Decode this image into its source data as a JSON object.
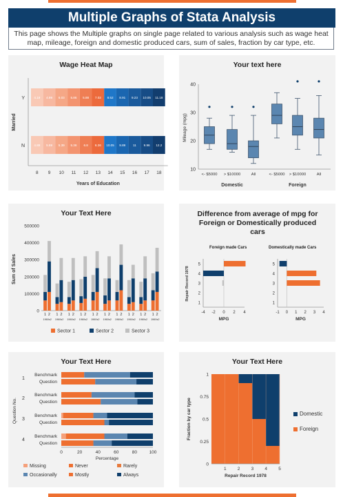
{
  "page": {
    "title": "Multiple Graphs of Stata Analysis",
    "description": "This page shows the Multiple  graphs on single page related to various analysis such as wage heat map, mileage, foreign and domestic produced cars, sum of sales, fraction by car type, etc."
  },
  "colors": {
    "navy": "#0f3f6c",
    "orange": "#ee6f30",
    "blue": "#1f77c8",
    "gray": "#bfbfbf",
    "steel": "#5b86b0"
  },
  "chart_data": [
    {
      "type": "heatmap",
      "title": "Wage Heat Map",
      "xlabel": "Years of Education",
      "ylabel": "Married",
      "x": [
        "8",
        "9",
        "10",
        "11",
        "12",
        "13",
        "14",
        "15",
        "16",
        "17",
        "18"
      ],
      "rows": [
        {
          "label": "Y",
          "cells": [
            "4.19",
            "4.99",
            "6.03",
            "5.86",
            "5.88",
            "7.02",
            "8.52",
            "8.91",
            "9.23",
            "10.05",
            "11.18"
          ]
        },
        {
          "label": "N",
          "cells": [
            "4.89",
            "5.59",
            "5.39",
            "5.36",
            "6.8",
            "6.26",
            "10.05",
            "9.89",
            "11",
            "9.96",
            "12.2"
          ]
        }
      ]
    },
    {
      "type": "box",
      "title": "Your text here",
      "ylabel": "Mileage (mpg)",
      "ylim": [
        10,
        40
      ],
      "yticks": [
        "10",
        "20",
        "30",
        "40"
      ],
      "categories": [
        "<- $5000",
        "> $10000",
        "All",
        "<- $5000",
        "> $10000",
        "All"
      ],
      "groups": [
        "Domestic",
        "Foreign"
      ],
      "boxes": [
        {
          "min": 17,
          "q1": 19,
          "med": 22,
          "q3": 25,
          "max": 28,
          "outlier": 32
        },
        {
          "min": 16,
          "q1": 17,
          "med": 19,
          "q3": 24,
          "max": 29,
          "outlier": 32
        },
        {
          "min": 12,
          "q1": 14,
          "med": 18,
          "q3": 20,
          "max": 29,
          "outlier": 32
        },
        {
          "min": 21,
          "q1": 26,
          "med": 29,
          "q3": 33,
          "max": 37,
          "outlier": null
        },
        {
          "min": 17,
          "q1": 22,
          "med": 25,
          "q3": 29,
          "max": 35,
          "outlier": 41
        },
        {
          "min": 15,
          "q1": 21,
          "med": 24,
          "q3": 28,
          "max": 36,
          "outlier": 41
        }
      ]
    },
    {
      "type": "bar",
      "title": "Your Text Here",
      "ylabel": "Sum of Sales",
      "ylim": [
        0,
        500000
      ],
      "yticks": [
        "0",
        "100000",
        "200000",
        "300000",
        "400000",
        "500000"
      ],
      "bar_labels": [
        "1",
        "2"
      ],
      "group_labels": [
        "1960s",
        "1960s",
        "1960s",
        "1960s",
        "1960s",
        "1960s",
        "1960s",
        "1960s",
        "1960s",
        "1960s"
      ],
      "group_label_suffix": "2",
      "series": [
        {
          "name": "Sector 1",
          "values": [
            [
              60000,
              110000
            ],
            [
              40000,
              50000
            ],
            [
              40000,
              60000
            ],
            [
              45000,
              70000
            ],
            [
              60000,
              110000
            ],
            [
              40000,
              60000
            ],
            [
              60000,
              120000
            ],
            [
              40000,
              50000
            ],
            [
              40000,
              60000
            ],
            [
              60000,
              110000
            ]
          ]
        },
        {
          "name": "Sector 2",
          "values": [
            [
              50000,
              180000
            ],
            [
              40000,
              130000
            ],
            [
              40000,
              120000
            ],
            [
              40000,
              130000
            ],
            [
              50000,
              140000
            ],
            [
              50000,
              130000
            ],
            [
              50000,
              150000
            ],
            [
              40000,
              140000
            ],
            [
              40000,
              130000
            ],
            [
              60000,
              120000
            ]
          ]
        },
        {
          "name": "Sector 3",
          "values": [
            [
              100000,
              120000
            ],
            [
              80000,
              130000
            ],
            [
              90000,
              130000
            ],
            [
              100000,
              120000
            ],
            [
              100000,
              100000
            ],
            [
              100000,
              130000
            ],
            [
              70000,
              120000
            ],
            [
              100000,
              80000
            ],
            [
              90000,
              130000
            ],
            [
              100000,
              140000
            ]
          ]
        }
      ]
    },
    {
      "type": "bar",
      "title": "Difference from average of mpg for Foreign or Domestically  produced cars",
      "ylabel": "Repair Record 1978",
      "panels": [
        {
          "name": "Foreign made Cars",
          "xlabel": "MPG",
          "xlim": [
            -4,
            4
          ],
          "xticks": [
            "-4",
            "-2",
            "0",
            "2",
            "4"
          ],
          "yticks": [
            "1",
            "2",
            "3",
            "4",
            "5"
          ],
          "bars": [
            {
              "y": 5,
              "value": 4.2,
              "color": "orange"
            },
            {
              "y": 4,
              "value": -4,
              "color": "navy"
            },
            {
              "y": 3,
              "value": -0.3,
              "color": "gray"
            }
          ]
        },
        {
          "name": "Domestically made Cars",
          "xlabel": "MPG",
          "xlim": [
            -1,
            4
          ],
          "xticks": [
            "-1",
            "0",
            "1",
            "2",
            "3",
            "4"
          ],
          "yticks": [
            "1",
            "2",
            "3",
            "4",
            "5"
          ],
          "bars": [
            {
              "y": 5,
              "value": -0.8,
              "color": "navy"
            },
            {
              "y": 4,
              "value": 3.2,
              "color": "orange"
            },
            {
              "y": 3,
              "value": 3.6,
              "color": "orange"
            }
          ]
        }
      ]
    },
    {
      "type": "bar",
      "title": "Your Text Here",
      "xlabel": "Percentage",
      "ylabel": "Question No.",
      "xlim": [
        0,
        100
      ],
      "xticks": [
        "0",
        "20",
        "40",
        "60",
        "80",
        "100"
      ],
      "questions": [
        "1",
        "2",
        "3",
        "4"
      ],
      "row_labels": [
        "Benchmark",
        "Question"
      ],
      "legend": [
        "Missing",
        "Never",
        "Rarely",
        "Occasionally",
        "Mostly",
        "Always"
      ],
      "series_colors": [
        "#f5a07a",
        "#ee6f30",
        "#e77a3c",
        "#5b86b0",
        "#ee6f30",
        "#0f3f6c"
      ],
      "rows": [
        [
          [
            0,
            25,
            0,
            50,
            0,
            25
          ],
          [
            0,
            37,
            0,
            45,
            0,
            18
          ]
        ],
        [
          [
            0,
            33,
            0,
            47,
            0,
            20
          ],
          [
            0,
            43,
            0,
            40,
            0,
            17
          ]
        ],
        [
          [
            2,
            33,
            0,
            15,
            0,
            50
          ],
          [
            0,
            47,
            0,
            5,
            0,
            48
          ]
        ],
        [
          [
            5,
            42,
            0,
            25,
            0,
            28
          ],
          [
            0,
            35,
            0,
            20,
            0,
            45
          ]
        ]
      ]
    },
    {
      "type": "area",
      "title": "Your Text Here",
      "xlabel": "Repair Record 1978",
      "ylabel": "Fraction by car type",
      "xticks": [
        "1",
        "2",
        "3",
        "4",
        "5"
      ],
      "yticks": [
        "0",
        "0.25",
        "0.5",
        "0.75",
        "1"
      ],
      "series": [
        {
          "name": "Domestic",
          "values": [
            0,
            0,
            0.1,
            0.5,
            0.8
          ]
        },
        {
          "name": "Foreign",
          "values": [
            1,
            1,
            0.9,
            0.5,
            0.2
          ]
        }
      ]
    }
  ]
}
